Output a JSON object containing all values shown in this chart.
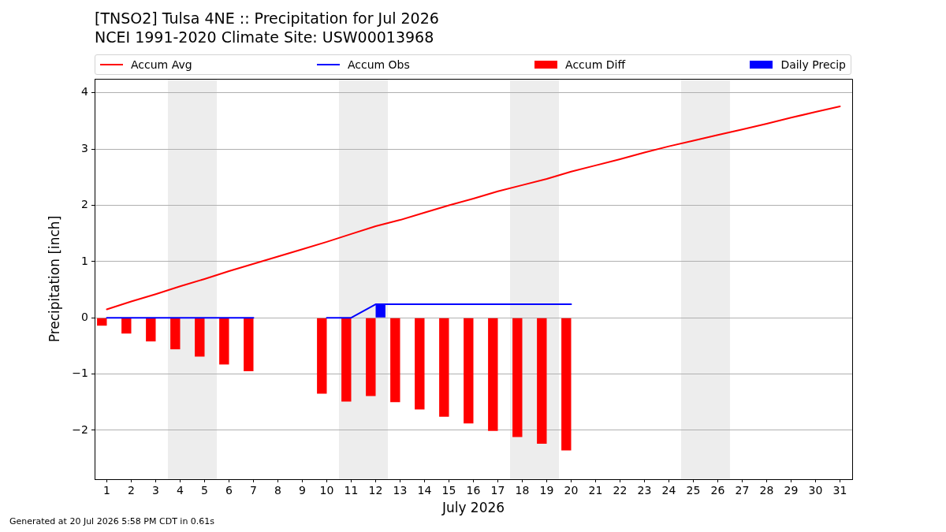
{
  "chart_data": {
    "type": "line",
    "title": "[TNSO2] Tulsa 4NE :: Precipitation for Jul 2026",
    "subtitle": "NCEI 1991-2020 Climate Site: USW00013968",
    "xlabel": "July 2026",
    "ylabel": "Precipitation [inch]",
    "x": [
      1,
      2,
      3,
      4,
      5,
      6,
      7,
      8,
      9,
      10,
      11,
      12,
      13,
      14,
      15,
      16,
      17,
      18,
      19,
      20,
      21,
      22,
      23,
      24,
      25,
      26,
      27,
      28,
      29,
      30,
      31
    ],
    "series": [
      {
        "name": "Accum Avg",
        "color": "#ff0000",
        "values": [
          0.15,
          0.29,
          0.42,
          0.56,
          0.69,
          0.83,
          0.96,
          1.09,
          1.22,
          1.35,
          1.49,
          1.63,
          1.74,
          1.87,
          2.0,
          2.12,
          2.25,
          2.36,
          2.47,
          2.6,
          2.71,
          2.82,
          2.94,
          3.05,
          3.15,
          3.25,
          3.35,
          3.45,
          3.56,
          3.66,
          3.76
        ]
      },
      {
        "name": "Accum Obs",
        "color": "#0000ff",
        "values": [
          0,
          0,
          0,
          0,
          0,
          0,
          0,
          null,
          null,
          0,
          0,
          0.24,
          0.24,
          0.24,
          0.24,
          0.24,
          0.24,
          0.24,
          0.24,
          0.24,
          null,
          null,
          null,
          null,
          null,
          null,
          null,
          null,
          null,
          null,
          null
        ]
      },
      {
        "name": "Accum Diff",
        "type": "bar",
        "color": "#ff0000",
        "values": [
          -0.14,
          -0.28,
          -0.42,
          -0.56,
          -0.69,
          -0.83,
          -0.95,
          null,
          null,
          -1.35,
          -1.49,
          -1.39,
          -1.5,
          -1.63,
          -1.76,
          -1.88,
          -2.01,
          -2.12,
          -2.24,
          -2.36,
          null,
          null,
          null,
          null,
          null,
          null,
          null,
          null,
          null,
          null,
          null
        ]
      },
      {
        "name": "Daily Precip",
        "type": "bar",
        "color": "#0000ff",
        "values": [
          null,
          null,
          null,
          null,
          null,
          null,
          null,
          null,
          null,
          null,
          null,
          0.24,
          null,
          null,
          null,
          null,
          null,
          null,
          null,
          null,
          null,
          null,
          null,
          null,
          null,
          null,
          null,
          null,
          null,
          null,
          null
        ]
      }
    ],
    "xlim": [
      0.5,
      31.5
    ],
    "xticks": [
      1,
      2,
      3,
      4,
      5,
      6,
      7,
      8,
      9,
      10,
      11,
      12,
      13,
      14,
      15,
      16,
      17,
      18,
      19,
      20,
      21,
      22,
      23,
      24,
      25,
      26,
      27,
      28,
      29,
      30,
      31
    ],
    "ylim": [
      -2.87,
      4.25
    ],
    "yticks": [
      {
        "value": -2,
        "label": "−2"
      },
      {
        "value": -1,
        "label": "−1"
      },
      0,
      1,
      2,
      3,
      4
    ],
    "bands": [
      {
        "axis": "x",
        "from": 3.5,
        "to": 5.5,
        "color": "#ededed"
      },
      {
        "axis": "x",
        "from": 10.5,
        "to": 12.5,
        "color": "#ededed"
      },
      {
        "axis": "x",
        "from": 17.5,
        "to": 19.5,
        "color": "#ededed"
      },
      {
        "axis": "x",
        "from": 24.5,
        "to": 26.5,
        "color": "#ededed"
      }
    ],
    "grid": "y",
    "legend": "top",
    "annotations": [
      "Generated at 20 Jul 2026 5:58 PM CDT in 0.61s"
    ]
  }
}
